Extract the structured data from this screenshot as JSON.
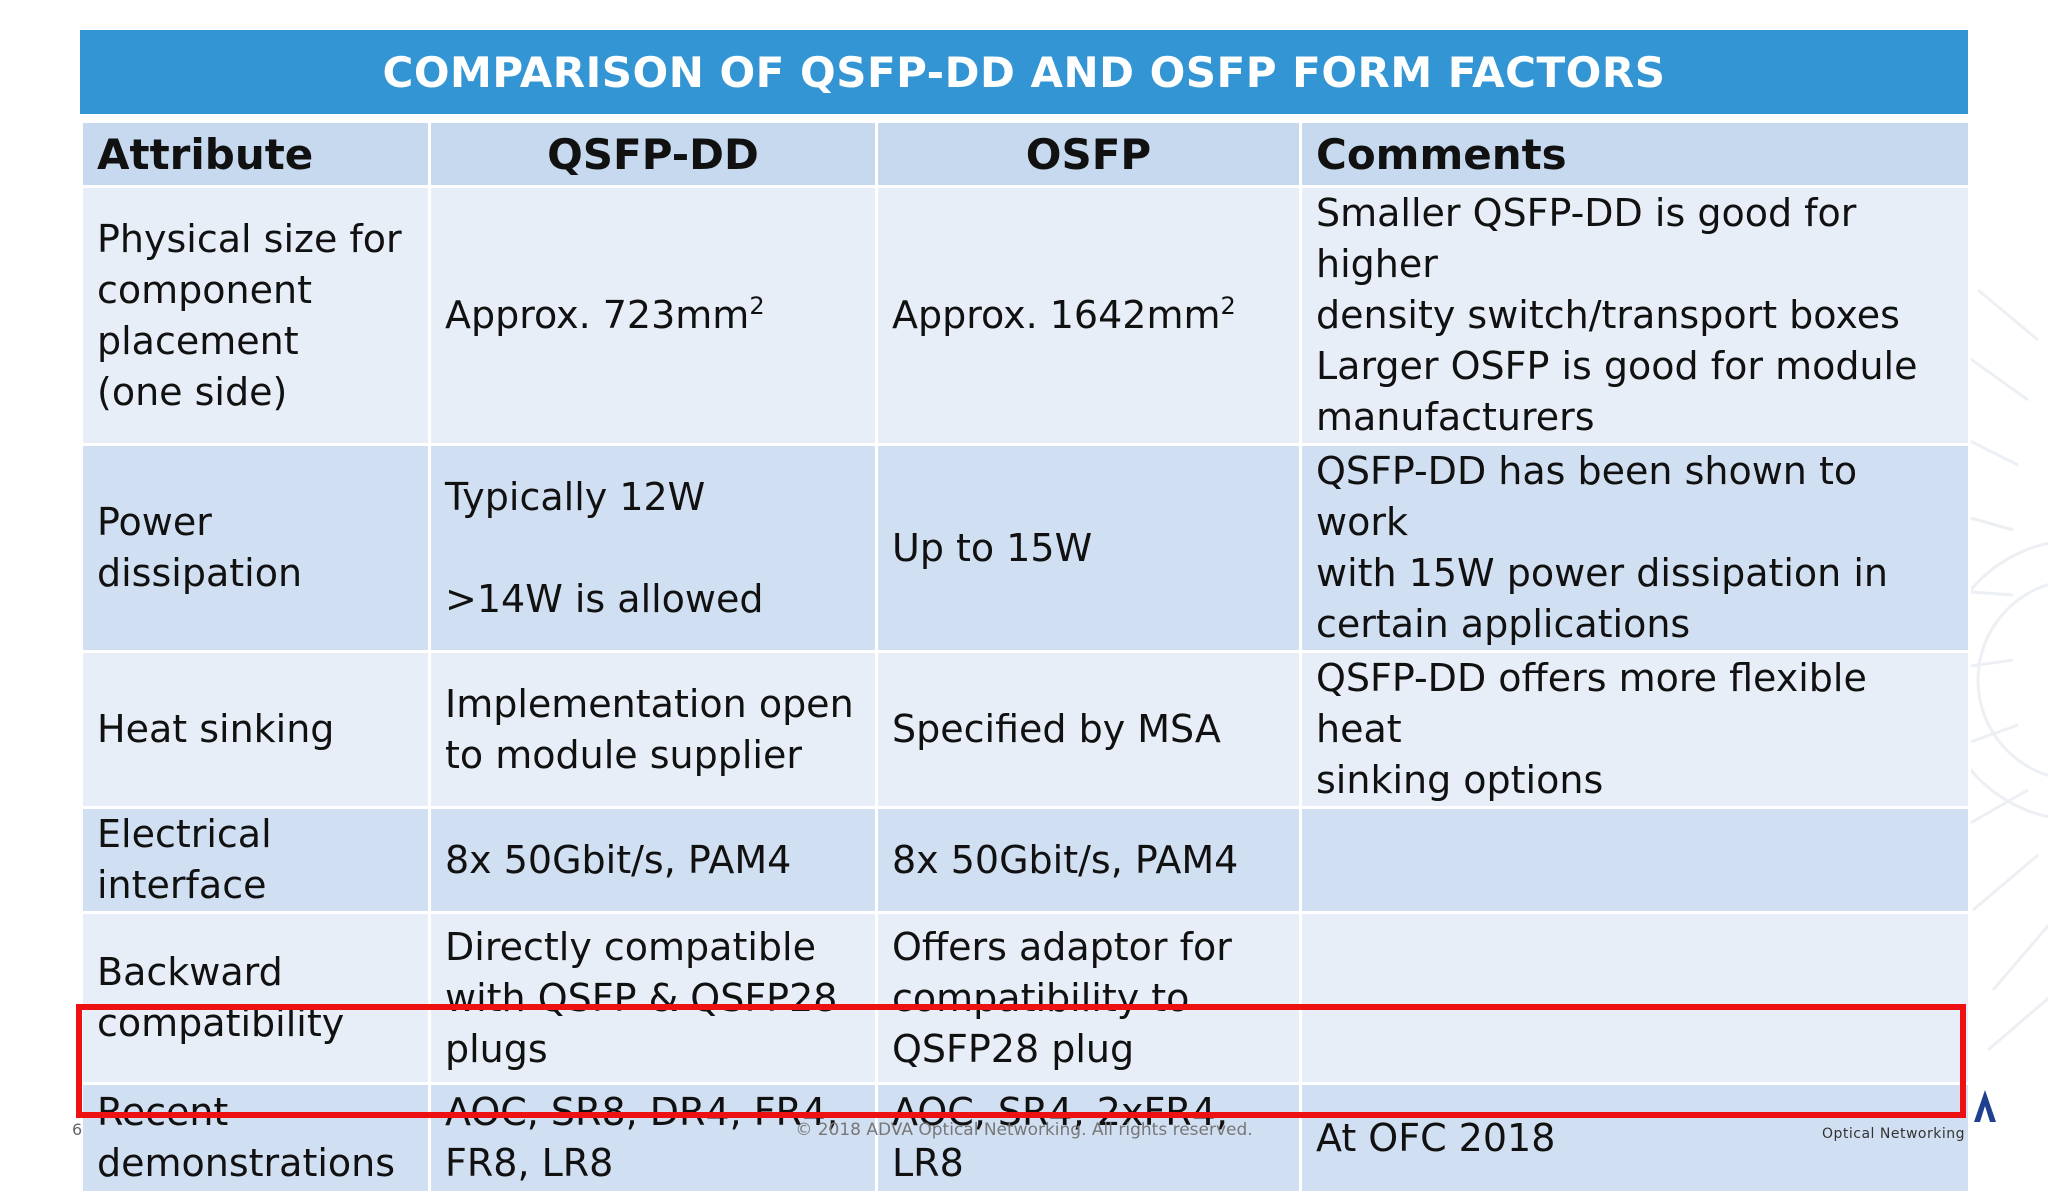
{
  "title": "COMPARISON OF QSFP-DD AND OSFP FORM FACTORS",
  "colors": {
    "title_bar": "#3395d3",
    "header_row": "#c6d9ee",
    "row_light": "#e7eef8",
    "row_dark": "#d0dff1",
    "highlight_border": "#ee1111"
  },
  "table": {
    "headers": [
      "Attribute",
      "QSFP-DD",
      "OSFP",
      "Comments"
    ],
    "rows": [
      {
        "attribute": [
          "Physical size for",
          "component",
          "placement",
          "(one side)"
        ],
        "qsfp_dd": {
          "text": "Approx. 723mm",
          "sup": "2"
        },
        "osfp": {
          "text": "Approx. 1642mm",
          "sup": "2"
        },
        "comments": [
          "Smaller QSFP-DD is good for higher",
          "density switch/transport boxes",
          "Larger OSFP is good for module",
          "manufacturers"
        ]
      },
      {
        "attribute": [
          "Power dissipation"
        ],
        "qsfp_dd": [
          "Typically 12W",
          ">14W is allowed"
        ],
        "osfp": [
          "Up to 15W"
        ],
        "comments": [
          "QSFP-DD has been shown to work",
          "with 15W power dissipation in",
          "certain applications"
        ]
      },
      {
        "attribute": [
          "Heat sinking"
        ],
        "qsfp_dd": [
          "Implementation open",
          "to module supplier"
        ],
        "osfp": [
          "Specified by MSA"
        ],
        "comments": [
          "QSFP-DD offers more flexible heat",
          "sinking options"
        ]
      },
      {
        "attribute": [
          "Electrical interface"
        ],
        "qsfp_dd": [
          "8x 50Gbit/s, PAM4"
        ],
        "osfp": [
          "8x 50Gbit/s, PAM4"
        ],
        "comments": []
      },
      {
        "attribute": [
          "Backward",
          "compatibility"
        ],
        "qsfp_dd": [
          "Directly compatible",
          "with QSFP & QSFP28",
          "plugs"
        ],
        "osfp": [
          "Offers adaptor for",
          "compatibility to",
          "QSFP28 plug"
        ],
        "comments": []
      },
      {
        "attribute": [
          "Recent",
          "demonstrations"
        ],
        "qsfp_dd": [
          "AOC, SR8, DR4, FR4,",
          "FR8, LR8"
        ],
        "osfp": [
          "AOC, SR4, 2xFR4, LR8"
        ],
        "comments": [
          "At OFC 2018"
        ]
      }
    ]
  },
  "footer": {
    "page_number": "6",
    "copyright": "© 2018 ADVA Optical Networking. All rights reserved.",
    "brand_tagline": "Optical Networking"
  }
}
